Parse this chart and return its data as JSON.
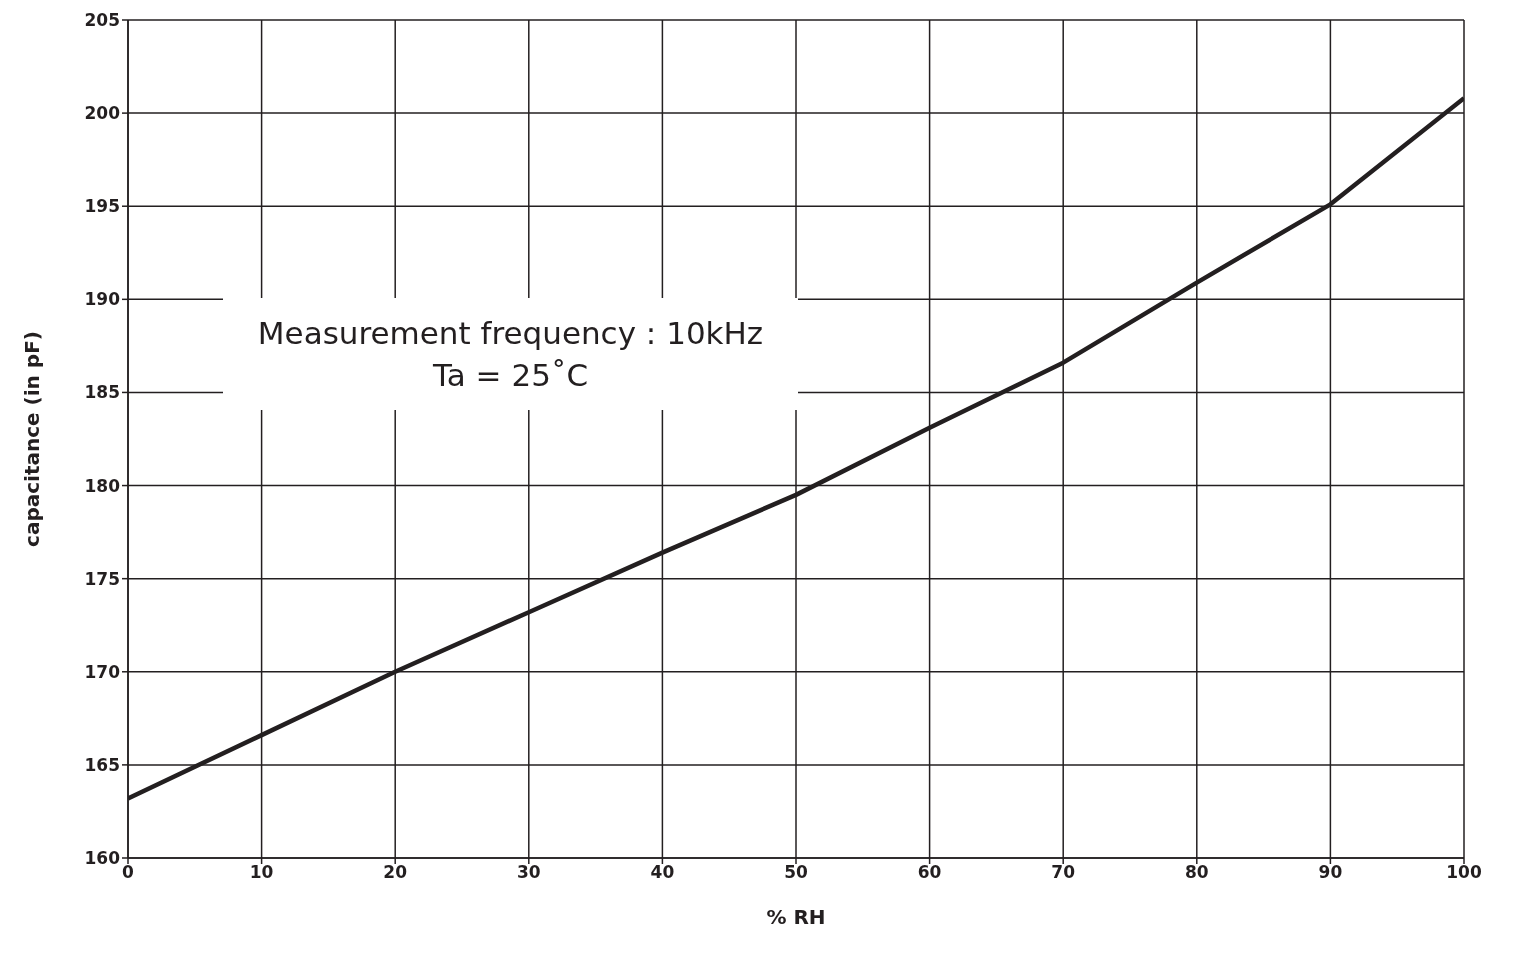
{
  "chart_data": {
    "type": "line",
    "xlabel": "% RH",
    "ylabel": "capacitance (in pF)",
    "annotations": [
      "Measurement frequency : 10kHz",
      "Ta = 25˚C"
    ],
    "x": [
      0,
      10,
      20,
      30,
      40,
      50,
      60,
      70,
      80,
      90,
      100
    ],
    "series": [
      {
        "color": "#231f20",
        "values": [
          163.2,
          166.6,
          170.0,
          173.2,
          176.4,
          179.5,
          183.1,
          186.6,
          190.9,
          195.1,
          200.8
        ]
      }
    ],
    "xlim": [
      0,
      100
    ],
    "xticks": [
      0,
      10,
      20,
      30,
      40,
      50,
      60,
      70,
      80,
      90,
      100
    ],
    "ylim": [
      160,
      205
    ],
    "yticks": [
      160,
      165,
      170,
      175,
      180,
      185,
      190,
      195,
      200,
      205
    ],
    "grid": true,
    "marker": "none",
    "line_style": "solid",
    "legend": false
  }
}
